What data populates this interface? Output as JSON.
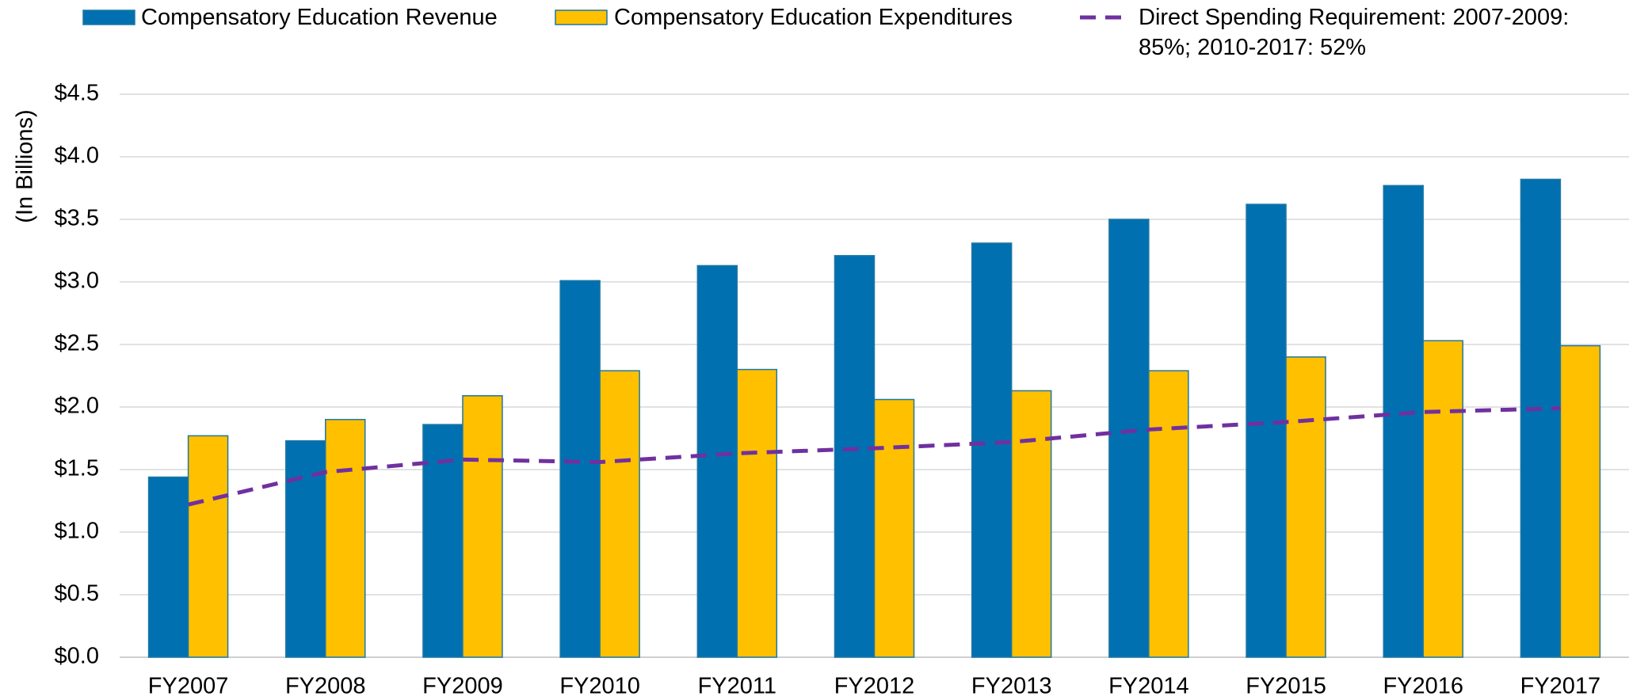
{
  "chart_data": {
    "type": "bar",
    "y_label": "(In Billions)",
    "categories": [
      "FY2007",
      "FY2008",
      "FY2009",
      "FY2010",
      "FY2011",
      "FY2012",
      "FY2013",
      "FY2014",
      "FY2015",
      "FY2016",
      "FY2017"
    ],
    "series": [
      {
        "name": "Compensatory Education Revenue",
        "type": "bar",
        "color": "#0070b0",
        "values": [
          1.44,
          1.73,
          1.86,
          3.01,
          3.13,
          3.21,
          3.31,
          3.5,
          3.62,
          3.77,
          3.82
        ]
      },
      {
        "name": "Compensatory Education Expenditures",
        "type": "bar",
        "color": "#ffc000",
        "values": [
          1.77,
          1.9,
          2.09,
          2.29,
          2.3,
          2.06,
          2.13,
          2.29,
          2.4,
          2.53,
          2.49
        ]
      },
      {
        "name": "Direct Spending Requirement: 2007-2009: 85%; 2010-2017: 52%",
        "type": "line",
        "color": "#7030a0",
        "values": [
          1.22,
          1.48,
          1.58,
          1.56,
          1.63,
          1.67,
          1.72,
          1.82,
          1.88,
          1.96,
          1.99
        ]
      }
    ],
    "ylim": [
      0,
      4.5
    ],
    "yticks": [
      {
        "value": 0,
        "label": "$0.0"
      },
      {
        "value": 0.5,
        "label": "$0.5"
      },
      {
        "value": 1,
        "label": "$1.0"
      },
      {
        "value": 1.5,
        "label": "$1.5"
      },
      {
        "value": 2,
        "label": "$2.0"
      },
      {
        "value": 2.5,
        "label": "$2.5"
      },
      {
        "value": 3,
        "label": "$3.0"
      },
      {
        "value": 3.5,
        "label": "$3.5"
      },
      {
        "value": 4,
        "label": "$4.0"
      },
      {
        "value": 4.5,
        "label": "$4.5"
      }
    ],
    "grid": true,
    "legend": "top"
  }
}
